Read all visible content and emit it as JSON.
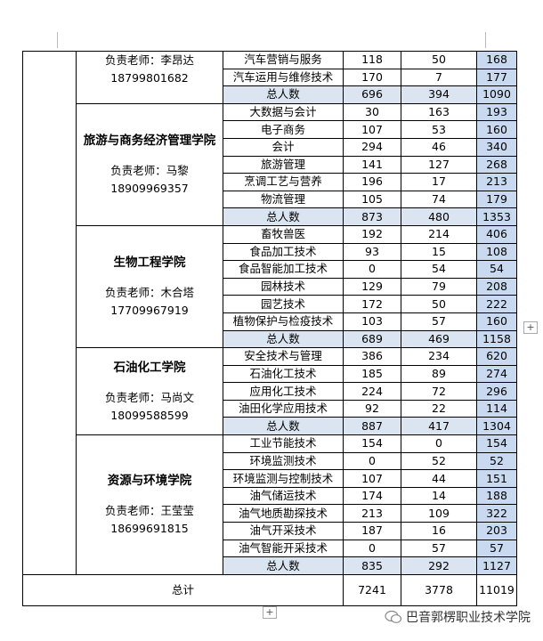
{
  "sections": [
    {
      "teacher": "负责老师：李昂达",
      "phone": "18799801682",
      "majors": [
        {
          "name": "汽车营销与服务",
          "values": [
            "118",
            "50",
            "168"
          ]
        },
        {
          "name": "汽车运用与维修技术",
          "values": [
            "170",
            "7",
            "177"
          ]
        }
      ],
      "subtotal": {
        "label": "总人数",
        "values": [
          "696",
          "394",
          "1090"
        ]
      }
    },
    {
      "college": "旅游与商务经济管理学院",
      "teacher": "负责老师：马黎",
      "phone": "18909969357",
      "majors": [
        {
          "name": "大数据与会计",
          "values": [
            "30",
            "163",
            "193"
          ]
        },
        {
          "name": "电子商务",
          "values": [
            "107",
            "53",
            "160"
          ]
        },
        {
          "name": "会计",
          "values": [
            "294",
            "46",
            "340"
          ]
        },
        {
          "name": "旅游管理",
          "values": [
            "141",
            "127",
            "268"
          ]
        },
        {
          "name": "烹调工艺与营养",
          "values": [
            "196",
            "17",
            "213"
          ]
        },
        {
          "name": "物流管理",
          "values": [
            "105",
            "74",
            "179"
          ]
        }
      ],
      "subtotal": {
        "label": "总人数",
        "values": [
          "873",
          "480",
          "1353"
        ]
      }
    },
    {
      "college": "生物工程学院",
      "teacher": "负责老师：木合塔",
      "phone": "17709967919",
      "majors": [
        {
          "name": "畜牧兽医",
          "values": [
            "192",
            "214",
            "406"
          ]
        },
        {
          "name": "食品加工技术",
          "values": [
            "93",
            "15",
            "108"
          ]
        },
        {
          "name": "食品智能加工技术",
          "values": [
            "0",
            "54",
            "54"
          ]
        },
        {
          "name": "园林技术",
          "values": [
            "129",
            "79",
            "208"
          ]
        },
        {
          "name": "园艺技术",
          "values": [
            "172",
            "50",
            "222"
          ]
        },
        {
          "name": "植物保护与检疫技术",
          "values": [
            "103",
            "57",
            "160"
          ]
        }
      ],
      "subtotal": {
        "label": "总人数",
        "values": [
          "689",
          "469",
          "1158"
        ]
      }
    },
    {
      "college": "石油化工学院",
      "teacher": "负责老师：马尚文",
      "phone": "18099588599",
      "majors": [
        {
          "name": "安全技术与管理",
          "values": [
            "386",
            "234",
            "620"
          ]
        },
        {
          "name": "石油化工技术",
          "values": [
            "185",
            "89",
            "274"
          ]
        },
        {
          "name": "应用化工技术",
          "values": [
            "224",
            "72",
            "296"
          ]
        },
        {
          "name": "油田化学应用技术",
          "values": [
            "92",
            "22",
            "114"
          ]
        }
      ],
      "subtotal": {
        "label": "总人数",
        "values": [
          "887",
          "417",
          "1304"
        ]
      }
    },
    {
      "college": "资源与环境学院",
      "teacher": "负责老师：王莹莹",
      "phone": "18699691815",
      "majors": [
        {
          "name": "工业节能技术",
          "values": [
            "154",
            "0",
            "154"
          ]
        },
        {
          "name": "环境监测技术",
          "values": [
            "0",
            "52",
            "52"
          ]
        },
        {
          "name": "环境监测与控制技术",
          "values": [
            "107",
            "44",
            "151"
          ]
        },
        {
          "name": "油气储运技术",
          "values": [
            "174",
            "14",
            "188"
          ]
        },
        {
          "name": "油气地质勘探技术",
          "values": [
            "213",
            "109",
            "322"
          ]
        },
        {
          "name": "油气开采技术",
          "values": [
            "187",
            "16",
            "203"
          ]
        },
        {
          "name": "油气智能开采技术",
          "values": [
            "0",
            "57",
            "57"
          ]
        }
      ],
      "subtotal": {
        "label": "总人数",
        "values": [
          "835",
          "292",
          "1127"
        ]
      }
    }
  ],
  "total": {
    "label": "总计",
    "values": [
      "7241",
      "3778",
      "11019"
    ]
  },
  "watermark": "巴音郭楞职业技术学院"
}
